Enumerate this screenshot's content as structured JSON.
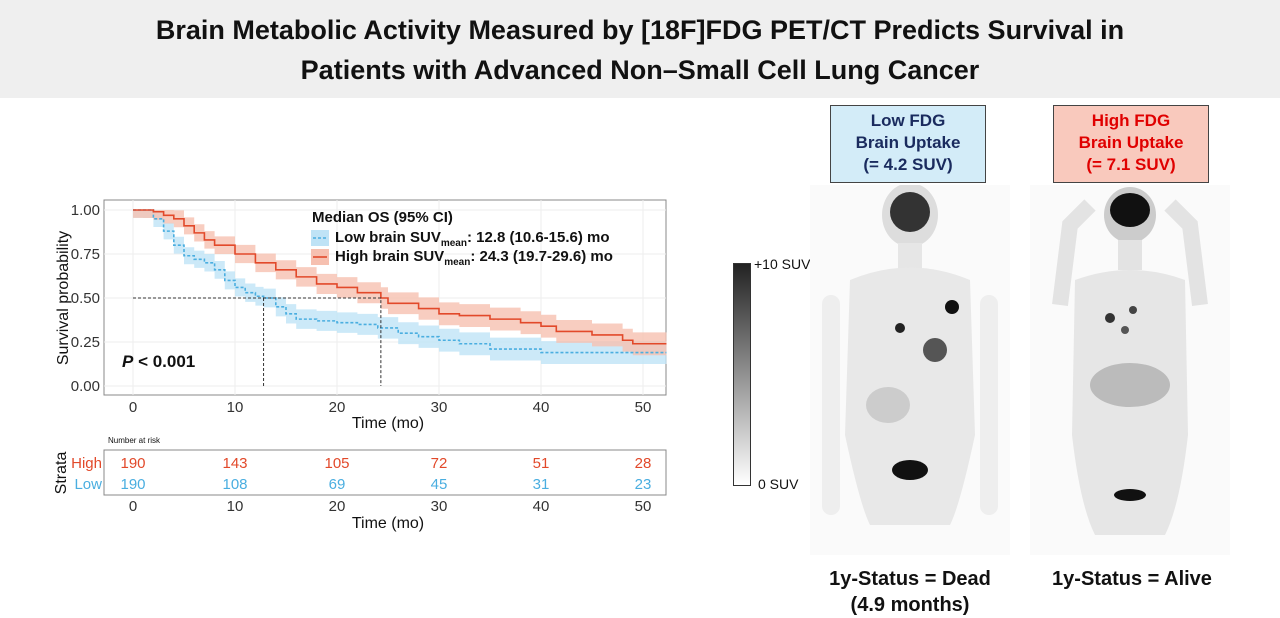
{
  "title": {
    "line1": "Brain Metabolic Activity Measured by [18F]FDG PET/CT Predicts Survival in",
    "line2": "Patients with Advanced Non–Small Cell Lung Cancer"
  },
  "colors": {
    "low": "#4aaee0",
    "high": "#e2492a",
    "low_band": "#bfe3f6",
    "high_band": "#f6c0b0",
    "low_box": "#d3ecf8",
    "high_box": "#f9c9bd",
    "low_text": "#1a2b5e",
    "high_text": "#e00000"
  },
  "chart_data": {
    "type": "line",
    "subtype": "kaplan-meier",
    "xlabel": "Time (mo)",
    "ylabel": "Survival probability",
    "xlim": [
      -2.8,
      52.3
    ],
    "ylim": [
      -0.05,
      1.05
    ],
    "xticks": [
      0,
      10,
      20,
      30,
      40,
      50
    ],
    "yticks": [
      "0.00",
      "0.25",
      "0.50",
      "0.75",
      "1.00"
    ],
    "grid": true,
    "legend": {
      "title": "Median OS (95% CI)",
      "position": "top-right",
      "entries": [
        {
          "pre": "Low brain SUV",
          "sub": "mean",
          "post": ": 12.8 (10.6-15.6) mo"
        },
        {
          "pre": "High brain SUV",
          "sub": "mean",
          "post": ": 24.3 (19.7-29.6) mo"
        }
      ]
    },
    "annotation": {
      "p_italic": "P",
      "p_rest": " < 0.001"
    },
    "medians": {
      "low": 12.8,
      "high": 24.3
    },
    "series": [
      {
        "name": "Low brain SUVmean",
        "style": "dashed",
        "points": [
          [
            0,
            1
          ],
          [
            1,
            1
          ],
          [
            2,
            0.95
          ],
          [
            3,
            0.88
          ],
          [
            4,
            0.8
          ],
          [
            5,
            0.74
          ],
          [
            6,
            0.72
          ],
          [
            7,
            0.7
          ],
          [
            8,
            0.66
          ],
          [
            9,
            0.6
          ],
          [
            10,
            0.56
          ],
          [
            11,
            0.53
          ],
          [
            12,
            0.51
          ],
          [
            12.8,
            0.5
          ],
          [
            14,
            0.45
          ],
          [
            15,
            0.41
          ],
          [
            16,
            0.38
          ],
          [
            18,
            0.37
          ],
          [
            20,
            0.36
          ],
          [
            22,
            0.35
          ],
          [
            24,
            0.33
          ],
          [
            26,
            0.3
          ],
          [
            28,
            0.28
          ],
          [
            30,
            0.26
          ],
          [
            32,
            0.24
          ],
          [
            35,
            0.21
          ],
          [
            40,
            0.19
          ],
          [
            52.3,
            0.19
          ]
        ]
      },
      {
        "name": "High brain SUVmean",
        "style": "solid",
        "points": [
          [
            0,
            1
          ],
          [
            1,
            1
          ],
          [
            2,
            0.99
          ],
          [
            3,
            0.97
          ],
          [
            4,
            0.95
          ],
          [
            5,
            0.91
          ],
          [
            6,
            0.87
          ],
          [
            7,
            0.83
          ],
          [
            8,
            0.8
          ],
          [
            10,
            0.75
          ],
          [
            12,
            0.7
          ],
          [
            14,
            0.66
          ],
          [
            16,
            0.62
          ],
          [
            18,
            0.58
          ],
          [
            20,
            0.56
          ],
          [
            22,
            0.53
          ],
          [
            24.3,
            0.5
          ],
          [
            25,
            0.47
          ],
          [
            28,
            0.44
          ],
          [
            30,
            0.41
          ],
          [
            32,
            0.4
          ],
          [
            35,
            0.38
          ],
          [
            38,
            0.36
          ],
          [
            40,
            0.34
          ],
          [
            41.5,
            0.31
          ],
          [
            45,
            0.29
          ],
          [
            48,
            0.26
          ],
          [
            49,
            0.24
          ],
          [
            52.3,
            0.24
          ]
        ]
      }
    ],
    "risk_table": {
      "title": "Number at risk",
      "ylabel": "Strata",
      "xlabel": "Time (mo)",
      "times": [
        0,
        10,
        20,
        30,
        40,
        50
      ],
      "rows": [
        {
          "label": "High",
          "values": [
            190,
            143,
            105,
            72,
            51,
            28
          ]
        },
        {
          "label": "Low",
          "values": [
            190,
            108,
            69,
            45,
            31,
            23
          ]
        }
      ]
    }
  },
  "images": {
    "colorbar": {
      "max": "+10 SUV",
      "min": "0 SUV"
    },
    "low": {
      "box": [
        "Low FDG",
        "Brain Uptake",
        "(= 4.2 SUV)"
      ],
      "status": [
        "1y-Status = Dead",
        "(4.9 months)"
      ]
    },
    "high": {
      "box": [
        "High FDG",
        "Brain Uptake",
        "(= 7.1 SUV)"
      ],
      "status": [
        "1y-Status = Alive"
      ]
    }
  }
}
